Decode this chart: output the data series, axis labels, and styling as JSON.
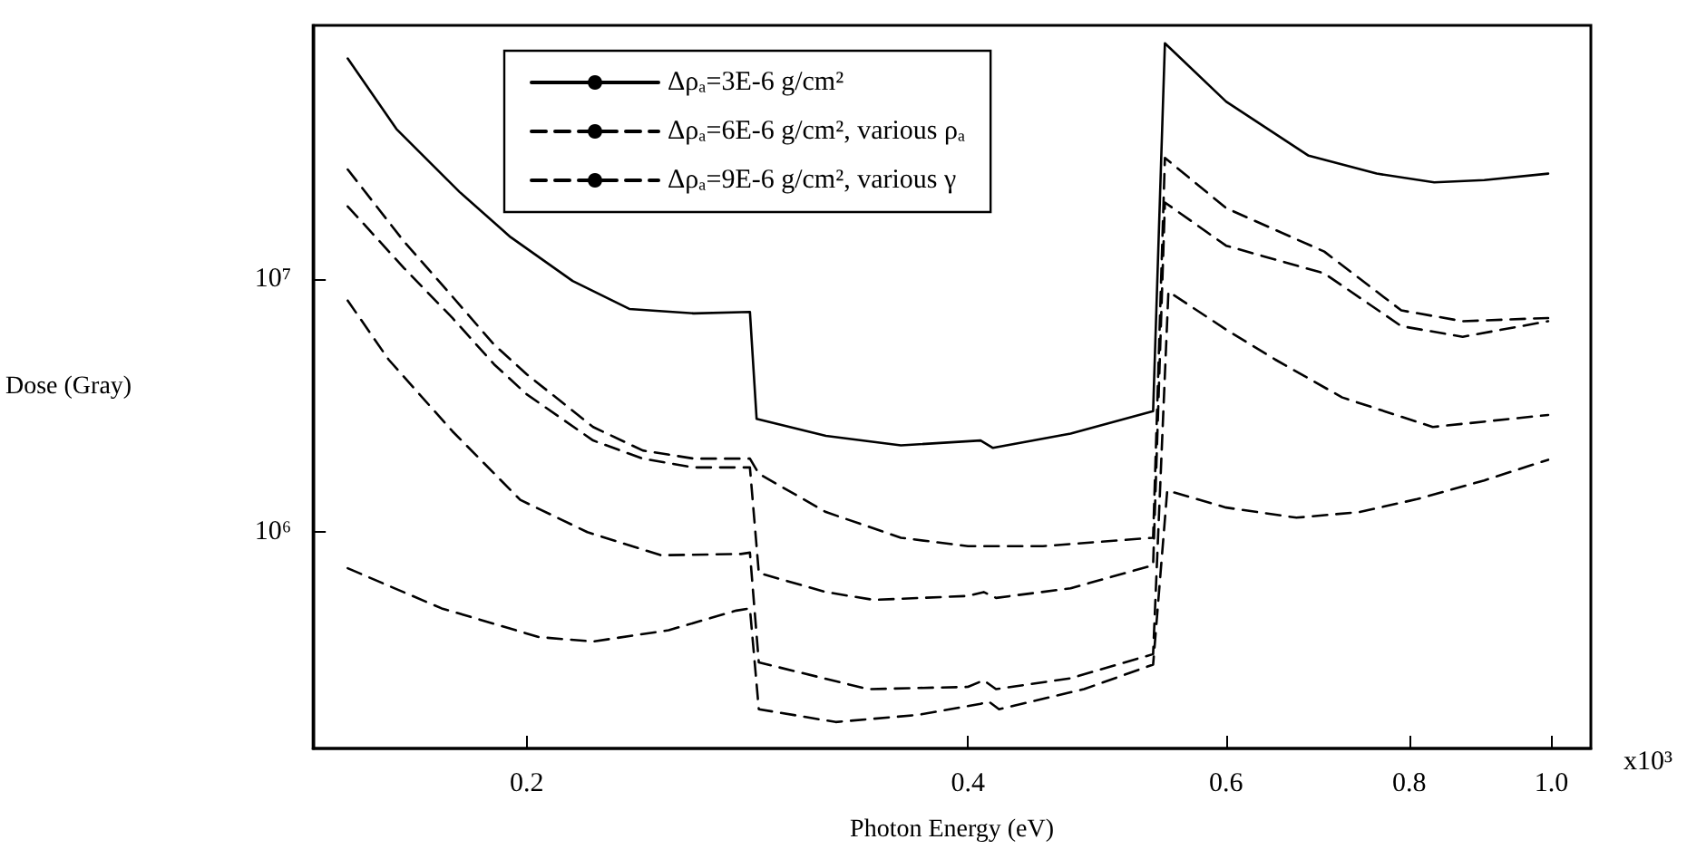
{
  "chart_data": {
    "type": "line",
    "xlabel": "Photon Energy (eV)",
    "ylabel": "Dose (Gray)",
    "log": "xy",
    "xlim": [
      0.143,
      1.064
    ],
    "ylim": [
      140000,
      100000000
    ],
    "xticks": [
      0.2,
      0.4,
      0.6,
      0.8,
      {
        "value": 1,
        "label": "1.0"
      }
    ],
    "yticks": [
      {
        "value": 1000000,
        "label": "10⁶"
      },
      {
        "value": 10000000,
        "label": "10⁷"
      }
    ],
    "grid": false,
    "legend": "top",
    "marker": "none",
    "annotations": [
      "x10³"
    ],
    "series": [
      {
        "name": "Δρₐ=3E-6 g/cm²",
        "color": "#000000",
        "line_style": "solid",
        "x": [
          0.151,
          0.163,
          0.18,
          0.195,
          0.215,
          0.235,
          0.26,
          0.284,
          0.287,
          0.32,
          0.36,
          0.408,
          0.416,
          0.47,
          0.535,
          0.545,
          0.6,
          0.683,
          0.76,
          0.832,
          0.9,
          0.995
        ],
        "values": [
          74000000,
          39000000,
          22000000,
          14600000,
          9800000,
          7600000,
          7300000,
          7400000,
          2800000,
          2400000,
          2200000,
          2300000,
          2150000,
          2450000,
          3000000,
          85000000,
          50000000,
          30600000,
          26000000,
          24000000,
          24500000,
          26000000
        ]
      },
      {
        "name": "Δρₐ=6E-6 g/cm², various ρₐ",
        "color": "#000000",
        "line_style": "dashed",
        "x": [
          0.151,
          0.165,
          0.178,
          0.19,
          0.2,
          0.222,
          0.24,
          0.26,
          0.284,
          0.288,
          0.32,
          0.36,
          0.4,
          0.45,
          0.535,
          0.545,
          0.6,
          0.7,
          0.79,
          0.87,
          0.995
        ],
        "values": [
          27000000,
          14000000,
          8500000,
          5500000,
          4200000,
          2600000,
          2100000,
          1950000,
          1950000,
          1700000,
          1200000,
          950000,
          880000,
          880000,
          950000,
          30000000,
          19000000,
          12800000,
          7500000,
          6800000,
          7000000
        ]
      },
      {
        "color": "#000000",
        "line_style": "dashed",
        "x": [
          0.151,
          0.165,
          0.178,
          0.19,
          0.2,
          0.222,
          0.24,
          0.26,
          0.284,
          0.288,
          0.32,
          0.345,
          0.4,
          0.41,
          0.418,
          0.47,
          0.535,
          0.545,
          0.6,
          0.7,
          0.79,
          0.87,
          0.995
        ],
        "values": [
          19300000,
          11000000,
          7000000,
          4600000,
          3500000,
          2300000,
          1950000,
          1800000,
          1800000,
          690000,
          580000,
          540000,
          560000,
          580000,
          550000,
          600000,
          740000,
          20000000,
          13500000,
          10500000,
          6500000,
          5900000,
          6800000
        ]
      },
      {
        "name": "Δρₐ=9E-6 g/cm², various γ",
        "color": "#000000",
        "line_style": "dashed",
        "x": [
          0.151,
          0.161,
          0.178,
          0.198,
          0.22,
          0.247,
          0.28,
          0.284,
          0.288,
          0.342,
          0.4,
          0.41,
          0.418,
          0.47,
          0.535,
          0.548,
          0.6,
          0.648,
          0.72,
          0.83,
          0.995
        ],
        "values": [
          8200000,
          4800000,
          2500000,
          1340000,
          1000000,
          810000,
          820000,
          830000,
          306000,
          240000,
          245000,
          260000,
          240000,
          265000,
          330000,
          8900000,
          6300000,
          4800000,
          3400000,
          2600000,
          2900000
        ]
      },
      {
        "color": "#000000",
        "line_style": "dashed",
        "x": [
          0.151,
          0.175,
          0.204,
          0.222,
          0.25,
          0.278,
          0.284,
          0.288,
          0.325,
          0.37,
          0.408,
          0.413,
          0.42,
          0.48,
          0.535,
          0.547,
          0.6,
          0.67,
          0.74,
          0.81,
          0.9,
          0.995
        ],
        "values": [
          720000,
          500000,
          385000,
          370000,
          410000,
          490000,
          500000,
          200000,
          178000,
          190000,
          210000,
          215000,
          200000,
          240000,
          300000,
          1460000,
          1250000,
          1140000,
          1200000,
          1350000,
          1600000,
          1930000
        ]
      }
    ]
  }
}
